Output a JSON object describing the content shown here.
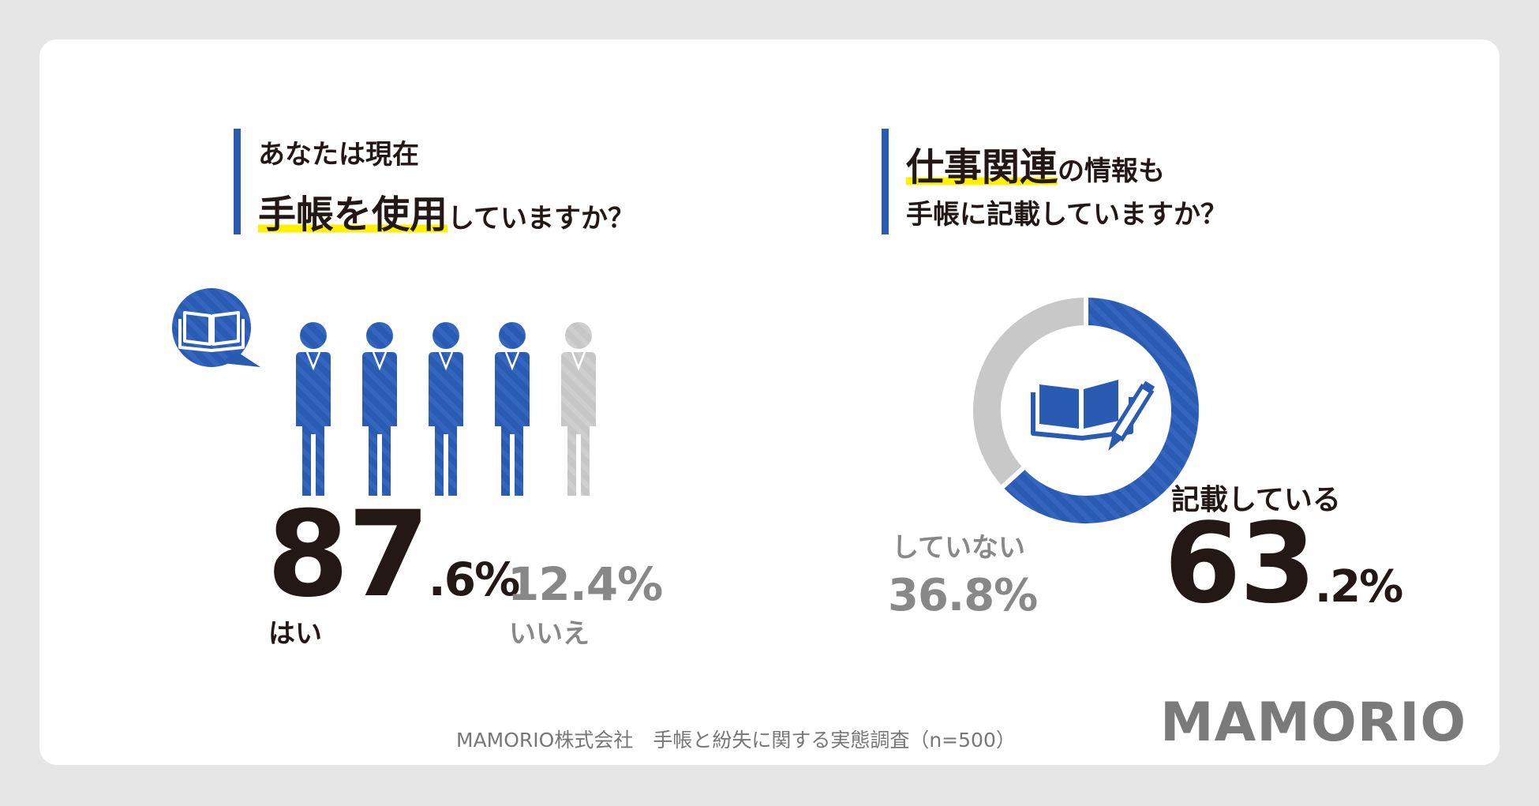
{
  "colors": {
    "accent": "#2a5bb3",
    "muted": "#c8c8c8",
    "highlight": "#fff000",
    "text": "#231815",
    "subtext": "#888888"
  },
  "left": {
    "question_line1": "あなたは現在",
    "question_hl": "手帳を使用",
    "question_rest": "していますか？",
    "icon": "open-book-icon",
    "yes_int": "87",
    "yes_dec": ".6%",
    "yes_label": "はい",
    "no_value": "12.4%",
    "no_label": "いいえ"
  },
  "right": {
    "question_hl": "仕事関連",
    "question_rest1": "の情報も",
    "question_line2": "手帳に記載していますか？",
    "icon": "book-and-pen-icon",
    "yes_label": "記載している",
    "yes_int": "63",
    "yes_dec": ".2%",
    "no_label": "していない",
    "no_value": "36.8%"
  },
  "footer": {
    "source": "MAMORIO株式会社　手帳と紛失に関する実態調査（n=500）",
    "logo": "MAMORIO"
  },
  "chart_data": [
    {
      "type": "pictogram",
      "series": [
        {
          "name": "はい",
          "value": 87.6
        },
        {
          "name": "いいえ",
          "value": 12.4
        }
      ]
    },
    {
      "type": "pie",
      "series": [
        {
          "name": "記載している",
          "value": 63.2
        },
        {
          "name": "していない",
          "value": 36.8
        }
      ]
    }
  ]
}
